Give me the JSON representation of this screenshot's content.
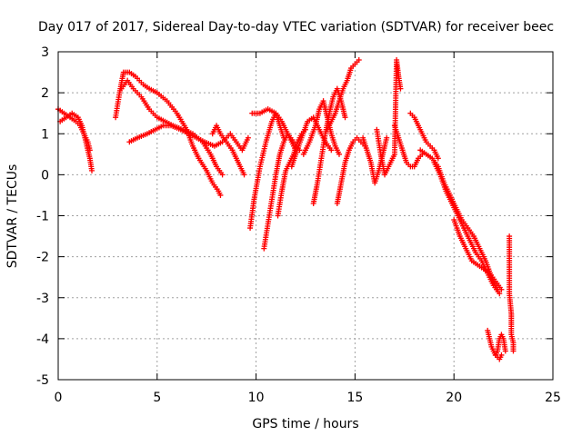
{
  "chart_data": {
    "type": "scatter",
    "title": "Day 017 of 2017, Sidereal Day-to-day VTEC variation (SDTVAR) for receiver beec",
    "xlabel": "GPS time / hours",
    "ylabel": "SDTVAR / TECUs",
    "xlim": [
      0,
      25
    ],
    "ylim": [
      -5,
      3
    ],
    "x_ticks": [
      0,
      5,
      10,
      15,
      20,
      25
    ],
    "y_ticks": [
      -5,
      -4,
      -3,
      -2,
      -1,
      0,
      1,
      2,
      3
    ],
    "grid": true,
    "marker": "+",
    "color": "#ff0000",
    "series": [
      {
        "name": "SDTVAR",
        "segments": [
          {
            "x": [
              0.0,
              0.3,
              0.6,
              0.9,
              1.1,
              1.3,
              1.5,
              1.6
            ],
            "y": [
              1.6,
              1.5,
              1.4,
              1.3,
              1.2,
              1.0,
              0.8,
              0.6
            ]
          },
          {
            "x": [
              0.1,
              0.4,
              0.7,
              1.0,
              1.2,
              1.4,
              1.6,
              1.7
            ],
            "y": [
              1.3,
              1.4,
              1.5,
              1.4,
              1.2,
              0.8,
              0.4,
              0.1
            ]
          },
          {
            "x": [
              2.9,
              3.1,
              3.3,
              3.6,
              3.9,
              4.3,
              4.6,
              5.0,
              5.5,
              6.0,
              6.5,
              6.8,
              7.1,
              7.5,
              7.8,
              8.1,
              8.2
            ],
            "y": [
              1.4,
              2.0,
              2.5,
              2.5,
              2.4,
              2.2,
              2.1,
              2.0,
              1.8,
              1.5,
              1.1,
              0.7,
              0.4,
              0.1,
              -0.2,
              -0.4,
              -0.5
            ]
          },
          {
            "x": [
              3.2,
              3.5,
              3.8,
              4.2,
              4.6,
              5.0,
              5.4,
              5.8,
              6.3,
              6.8,
              7.3,
              7.7,
              8.0,
              8.3
            ],
            "y": [
              2.1,
              2.3,
              2.1,
              1.9,
              1.6,
              1.4,
              1.3,
              1.2,
              1.1,
              1.0,
              0.8,
              0.5,
              0.2,
              0.0
            ]
          },
          {
            "x": [
              3.6,
              4.0,
              4.5,
              4.9,
              5.3,
              5.7,
              6.2,
              6.6,
              7.0,
              7.4,
              7.9,
              8.3,
              8.7,
              9.0,
              9.3,
              9.6
            ],
            "y": [
              0.8,
              0.9,
              1.0,
              1.1,
              1.2,
              1.2,
              1.1,
              1.0,
              0.9,
              0.8,
              0.7,
              0.8,
              1.0,
              0.8,
              0.6,
              0.9
            ]
          },
          {
            "x": [
              7.8,
              8.0,
              8.2,
              8.5,
              8.8,
              9.1,
              9.4
            ],
            "y": [
              1.0,
              1.2,
              1.0,
              0.8,
              0.6,
              0.3,
              0.0
            ]
          },
          {
            "x": [
              9.7,
              9.9,
              10.2,
              10.5,
              10.8,
              11.0,
              11.2,
              11.4
            ],
            "y": [
              -1.3,
              -0.6,
              0.2,
              0.8,
              1.3,
              1.5,
              1.2,
              0.9
            ]
          },
          {
            "x": [
              9.8,
              10.2,
              10.6,
              11.0,
              11.3,
              11.6,
              11.9,
              12.2
            ],
            "y": [
              1.5,
              1.5,
              1.6,
              1.5,
              1.3,
              1.0,
              0.8,
              0.6
            ]
          },
          {
            "x": [
              10.4,
              10.6,
              10.8,
              11.0,
              11.2,
              11.4,
              11.6,
              11.8,
              12.0
            ],
            "y": [
              -1.8,
              -1.2,
              -0.6,
              0.0,
              0.5,
              0.8,
              1.0,
              0.8,
              0.6
            ]
          },
          {
            "x": [
              11.1,
              11.3,
              11.5,
              11.7,
              11.9,
              12.1,
              12.3,
              12.5
            ],
            "y": [
              -1.0,
              -0.4,
              0.1,
              0.3,
              0.5,
              0.8,
              1.0,
              1.1
            ]
          },
          {
            "x": [
              11.8,
              12.0,
              12.3,
              12.6,
              12.9,
              13.2,
              13.5,
              13.8
            ],
            "y": [
              0.2,
              0.5,
              0.9,
              1.3,
              1.4,
              1.1,
              0.8,
              0.6
            ]
          },
          {
            "x": [
              12.4,
              12.7,
              13.0,
              13.2,
              13.4,
              13.6,
              13.8,
              14.0,
              14.2
            ],
            "y": [
              0.5,
              0.8,
              1.2,
              1.6,
              1.8,
              1.4,
              1.0,
              0.7,
              0.5
            ]
          },
          {
            "x": [
              12.9,
              13.1,
              13.3,
              13.5,
              13.7,
              13.9,
              14.1,
              14.3,
              14.5
            ],
            "y": [
              -0.7,
              -0.2,
              0.4,
              1.0,
              1.5,
              1.9,
              2.1,
              1.8,
              1.4
            ]
          },
          {
            "x": [
              13.6,
              13.8,
              14.0,
              14.2,
              14.4,
              14.6,
              14.8,
              15.0,
              15.2
            ],
            "y": [
              1.1,
              1.3,
              1.5,
              1.8,
              2.1,
              2.3,
              2.6,
              2.7,
              2.8
            ]
          },
          {
            "x": [
              14.1,
              14.3,
              14.5,
              14.7,
              14.9,
              15.1,
              15.3,
              15.5
            ],
            "y": [
              -0.7,
              -0.2,
              0.3,
              0.6,
              0.8,
              0.9,
              0.8,
              0.7
            ]
          },
          {
            "x": [
              15.4,
              15.6,
              15.8,
              16.0,
              16.2,
              16.4,
              16.6
            ],
            "y": [
              0.9,
              0.6,
              0.3,
              -0.2,
              0.1,
              0.5,
              0.9
            ]
          },
          {
            "x": [
              16.1,
              16.3,
              16.5,
              16.8,
              17.0,
              17.1,
              17.2,
              17.3
            ],
            "y": [
              1.1,
              0.5,
              0.0,
              0.3,
              0.5,
              2.8,
              2.4,
              2.1
            ]
          },
          {
            "x": [
              17.0,
              17.2,
              17.4,
              17.6,
              17.8,
              18.0,
              18.2,
              18.4
            ],
            "y": [
              1.2,
              0.9,
              0.6,
              0.3,
              0.2,
              0.2,
              0.4,
              0.5
            ]
          },
          {
            "x": [
              17.8,
              18.0,
              18.2,
              18.4,
              18.6,
              18.8,
              19.0,
              19.2
            ],
            "y": [
              1.5,
              1.4,
              1.2,
              1.0,
              0.8,
              0.7,
              0.6,
              0.4
            ]
          },
          {
            "x": [
              18.3,
              18.6,
              18.9,
              19.2,
              19.5,
              19.8,
              20.1,
              20.4,
              20.7,
              21.0,
              21.3,
              21.6,
              21.9,
              22.2
            ],
            "y": [
              0.6,
              0.5,
              0.4,
              0.2,
              -0.2,
              -0.5,
              -0.8,
              -1.1,
              -1.3,
              -1.5,
              -1.8,
              -2.1,
              -2.5,
              -2.8
            ]
          },
          {
            "x": [
              19.0,
              19.3,
              19.6,
              19.9,
              20.2,
              20.5,
              20.8,
              21.1,
              21.4,
              21.7,
              22.0,
              22.3
            ],
            "y": [
              0.3,
              0.0,
              -0.4,
              -0.7,
              -1.0,
              -1.3,
              -1.6,
              -1.9,
              -2.1,
              -2.4,
              -2.7,
              -2.9
            ]
          },
          {
            "x": [
              20.0,
              20.3,
              20.6,
              20.9,
              21.2,
              21.5,
              21.8,
              22.1,
              22.4
            ],
            "y": [
              -1.1,
              -1.5,
              -1.8,
              -2.1,
              -2.2,
              -2.3,
              -2.4,
              -2.6,
              -2.8
            ]
          },
          {
            "x": [
              21.7,
              21.9,
              22.1,
              22.3,
              22.4
            ],
            "y": [
              -3.8,
              -4.2,
              -4.4,
              -4.5,
              -4.4
            ]
          },
          {
            "x": [
              22.1,
              22.2,
              22.3,
              22.4,
              22.5,
              22.6
            ],
            "y": [
              -4.4,
              -4.3,
              -4.0,
              -3.9,
              -4.0,
              -4.3
            ]
          },
          {
            "x": [
              22.8,
              22.8,
              22.9,
              22.9,
              23.0,
              23.0
            ],
            "y": [
              -1.5,
              -2.9,
              -3.4,
              -3.9,
              -4.1,
              -4.3
            ]
          }
        ]
      }
    ]
  }
}
